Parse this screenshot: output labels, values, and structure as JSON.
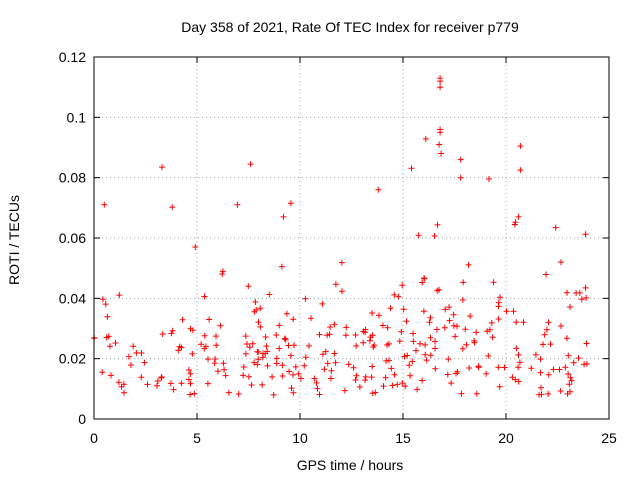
{
  "chart_data": {
    "type": "scatter",
    "title": "Day 358 of 2021, Rate Of TEC Index for receiver p779",
    "xlabel": "GPS time / hours",
    "ylabel": "ROTI / TECUs",
    "xlim": [
      0,
      25
    ],
    "ylim": [
      0,
      0.12
    ],
    "xticks": [
      0,
      5,
      10,
      15,
      20,
      25
    ],
    "xtick_labels": [
      "0",
      "5",
      "10",
      "15",
      "20",
      "25"
    ],
    "yticks": [
      0,
      0.02,
      0.04,
      0.06,
      0.08,
      0.1,
      0.12
    ],
    "ytick_labels": [
      "0",
      "0.02",
      "0.04",
      "0.06",
      "0.08",
      "0.1",
      "0.12"
    ],
    "grid": true,
    "marker": "plus",
    "marker_color": "#ff0000",
    "data_range_hours": [
      0,
      24
    ],
    "series": [
      {
        "name": "ROTI",
        "notable_points": [
          {
            "x": 0.5,
            "y": 0.071
          },
          {
            "x": 3.3,
            "y": 0.0835
          },
          {
            "x": 7.6,
            "y": 0.0845
          },
          {
            "x": 16.8,
            "y": 0.113
          },
          {
            "x": 16.8,
            "y": 0.112
          },
          {
            "x": 16.8,
            "y": 0.11
          },
          {
            "x": 16.8,
            "y": 0.096
          },
          {
            "x": 16.8,
            "y": 0.095
          },
          {
            "x": 16.75,
            "y": 0.091
          },
          {
            "x": 16.85,
            "y": 0.088
          },
          {
            "x": 17.8,
            "y": 0.086
          },
          {
            "x": 17.8,
            "y": 0.08
          },
          {
            "x": 20.7,
            "y": 0.0905
          },
          {
            "x": 20.7,
            "y": 0.0825
          },
          {
            "x": 20.6,
            "y": 0.067
          },
          {
            "x": 13.8,
            "y": 0.076
          },
          {
            "x": 9.2,
            "y": 0.067
          }
        ]
      }
    ]
  }
}
